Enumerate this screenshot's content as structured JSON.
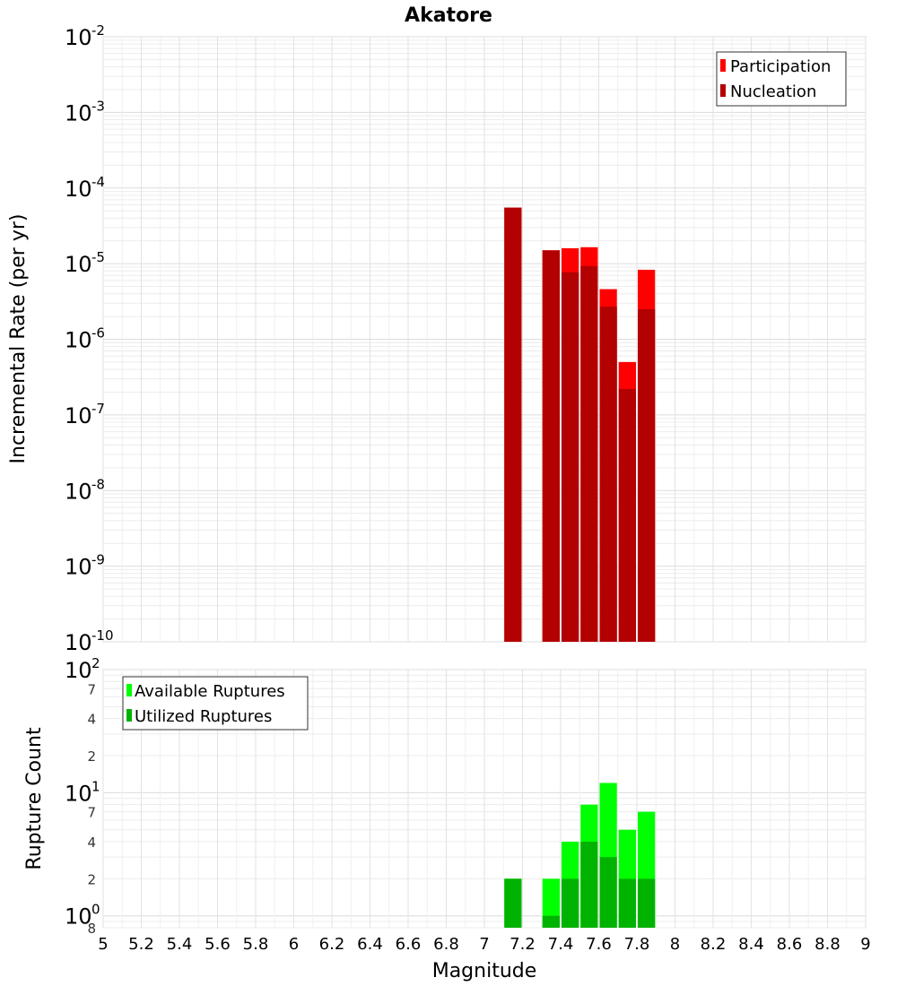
{
  "chart_data": [
    {
      "type": "bar",
      "title": "Akatore",
      "ylabel": "Incremental Rate (per yr)",
      "xlabel": "",
      "yscale": "log",
      "ylim": [
        1e-10,
        0.01
      ],
      "xlim": [
        5,
        9
      ],
      "bar_width": 0.1,
      "y_tick_labels": [
        {
          "base": "10",
          "exp": "-2",
          "value": 0.01
        },
        {
          "base": "10",
          "exp": "-3",
          "value": 0.001
        },
        {
          "base": "10",
          "exp": "-4",
          "value": 0.0001
        },
        {
          "base": "10",
          "exp": "-5",
          "value": 1e-05
        },
        {
          "base": "10",
          "exp": "-6",
          "value": 1e-06
        },
        {
          "base": "10",
          "exp": "-7",
          "value": 1e-07
        },
        {
          "base": "10",
          "exp": "-8",
          "value": 1e-08
        },
        {
          "base": "10",
          "exp": "-9",
          "value": 1e-09
        },
        {
          "base": "10",
          "exp": "-10",
          "value": 1e-10
        }
      ],
      "legend_position": "top-right",
      "series": [
        {
          "name": "Participation",
          "color": "#ff0000",
          "x": [
            7.15,
            7.35,
            7.45,
            7.55,
            7.65,
            7.75,
            7.85
          ],
          "values": [
            5.5e-05,
            1.5e-05,
            1.6e-05,
            1.65e-05,
            4.6e-06,
            5e-07,
            8.3e-06
          ]
        },
        {
          "name": "Nucleation",
          "color": "#b30000",
          "x": [
            7.15,
            7.35,
            7.45,
            7.55,
            7.65,
            7.75,
            7.85
          ],
          "values": [
            5.5e-05,
            1.5e-05,
            7.7e-06,
            9.3e-06,
            2.7e-06,
            2.2e-07,
            2.5e-06
          ]
        }
      ]
    },
    {
      "type": "bar",
      "title": "",
      "ylabel": "Rupture Count",
      "xlabel": "Magnitude",
      "yscale": "log",
      "ylim": [
        0.8,
        100
      ],
      "xlim": [
        5,
        9
      ],
      "bar_width": 0.1,
      "x_ticks": [
        "5",
        "5.2",
        "5.4",
        "5.6",
        "5.8",
        "6",
        "6.2",
        "6.4",
        "6.6",
        "6.8",
        "7",
        "7.2",
        "7.4",
        "7.6",
        "7.8",
        "8",
        "8.2",
        "8.4",
        "8.6",
        "8.8",
        "9"
      ],
      "y_tick_labels": [
        {
          "base": "10",
          "exp": "2",
          "value": 100
        },
        {
          "base": "10",
          "exp": "1",
          "value": 10
        },
        {
          "base": "10",
          "exp": "0",
          "value": 1
        }
      ],
      "y_minor_labels": [
        {
          "label": "7",
          "value": 70
        },
        {
          "label": "4",
          "value": 40
        },
        {
          "label": "2",
          "value": 20
        },
        {
          "label": "7",
          "value": 7
        },
        {
          "label": "4",
          "value": 4
        },
        {
          "label": "2",
          "value": 2
        },
        {
          "label": "8",
          "value": 0.8
        }
      ],
      "legend_position": "top-left",
      "series": [
        {
          "name": "Available Ruptures",
          "color": "#00ff00",
          "x": [
            7.15,
            7.35,
            7.45,
            7.55,
            7.65,
            7.75,
            7.85
          ],
          "values": [
            2,
            2,
            4,
            8,
            12,
            5,
            7
          ]
        },
        {
          "name": "Utilized Ruptures",
          "color": "#00b300",
          "x": [
            7.15,
            7.35,
            7.45,
            7.55,
            7.65,
            7.75,
            7.85
          ],
          "values": [
            2,
            1,
            2,
            4,
            3,
            2,
            2
          ]
        }
      ]
    }
  ]
}
